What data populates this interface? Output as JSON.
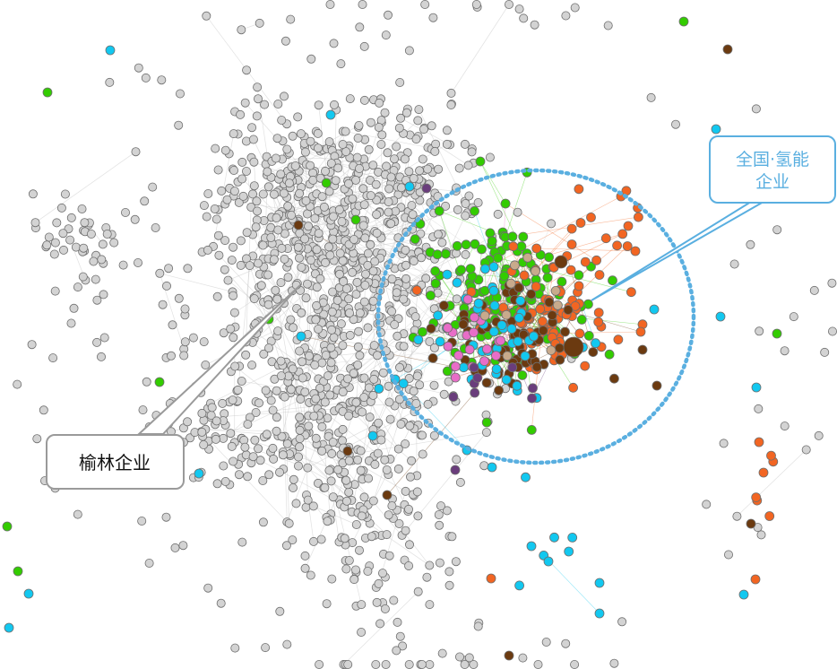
{
  "labels": {
    "yulin": "榆林企业",
    "national_line1": "全国·氢能",
    "national_line2": "企业"
  },
  "colors": {
    "gray_node": "#d3d3d3",
    "gray_stroke": "#6e6e6e",
    "green": "#33cc00",
    "cyan": "#12c8f0",
    "orange": "#f26522",
    "brown": "#6b3a10",
    "pink": "#e86dc8",
    "purple": "#6a3d7c",
    "tan": "#c8aa8c",
    "callout_blue": "#5aafe0",
    "callout_gray": "#9a9a9a"
  }
}
